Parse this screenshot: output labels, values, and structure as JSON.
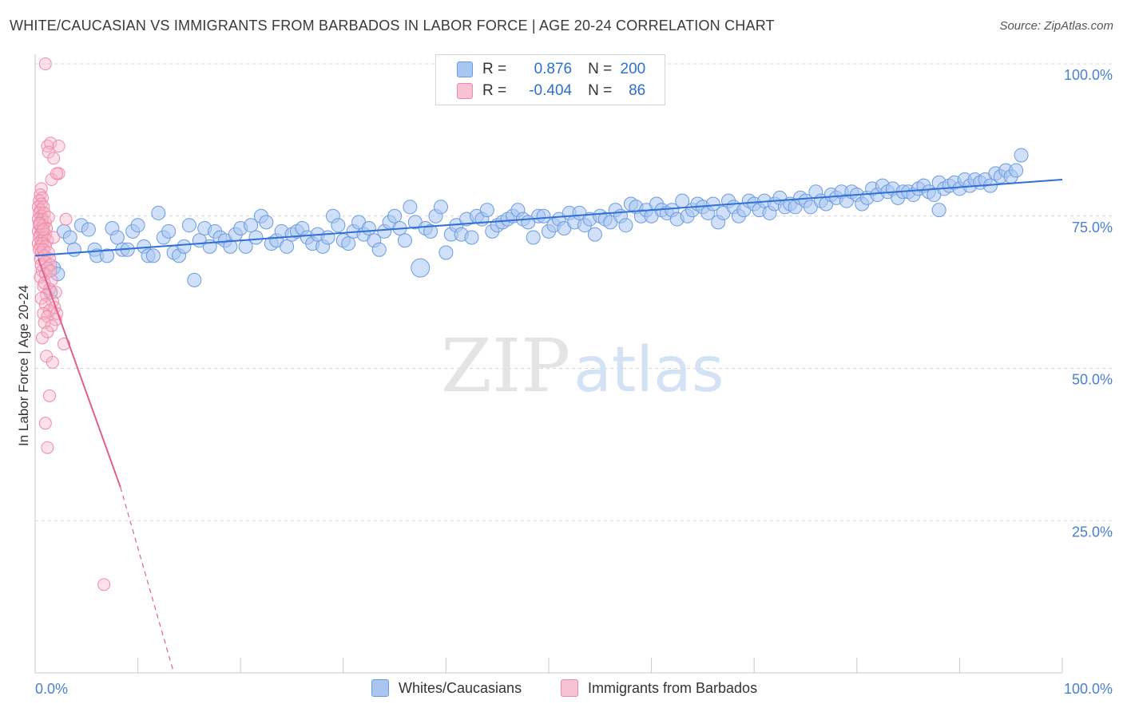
{
  "title": "WHITE/CAUCASIAN VS IMMIGRANTS FROM BARBADOS IN LABOR FORCE | AGE 20-24 CORRELATION CHART",
  "source": "Source: ZipAtlas.com",
  "watermark": {
    "zip": "ZIP",
    "atlas": "atlas"
  },
  "colors": {
    "blue_fill": "#a9c6f2",
    "blue_stroke": "#6b9be0",
    "blue_line": "#2f6fd6",
    "pink_fill": "#f7b3c9",
    "pink_stroke": "#ee8aab",
    "pink_line": "#e0608c",
    "tick_text": "#4a7fd0",
    "grid": "#d6d6d6"
  },
  "legend": {
    "rows": [
      {
        "r_label": "R =",
        "r_value": "0.876",
        "n_label": "N =",
        "n_value": "200"
      },
      {
        "r_label": "R =",
        "r_value": "-0.404",
        "n_label": "N =",
        "n_value": "86"
      }
    ]
  },
  "bottom_legend": {
    "series1": "Whites/Caucasians",
    "series2": "Immigrants from Barbados"
  },
  "chart_data": {
    "type": "scatter",
    "title": "WHITE/CAUCASIAN VS IMMIGRANTS FROM BARBADOS IN LABOR FORCE | AGE 20-24 CORRELATION CHART",
    "xlabel": "",
    "ylabel": "In Labor Force | Age 20-24",
    "xlim": [
      0,
      100
    ],
    "ylim": [
      0,
      100
    ],
    "x_tick_labels": [
      "0.0%",
      "100.0%"
    ],
    "y_tick_labels": [
      "100.0%",
      "75.0%",
      "50.0%",
      "25.0%"
    ],
    "y_ticks": [
      100,
      75,
      50,
      25
    ],
    "grid": true,
    "legend_position": "top-center",
    "series": [
      {
        "name": "Whites/Caucasians",
        "r": 0.876,
        "n": 200,
        "trend": {
          "x": [
            0,
            100
          ],
          "y": [
            68.5,
            81.0
          ]
        },
        "points": [
          [
            1.5,
            62.5
          ],
          [
            1.8,
            66.5
          ],
          [
            2.2,
            65.5
          ],
          [
            2.8,
            72.5
          ],
          [
            3.4,
            71.5
          ],
          [
            3.8,
            69.5
          ],
          [
            4.5,
            73.5
          ],
          [
            5.2,
            72.8
          ],
          [
            5.8,
            69.5
          ],
          [
            6.0,
            68.5
          ],
          [
            7.0,
            68.5
          ],
          [
            7.5,
            73.0
          ],
          [
            8.0,
            71.5
          ],
          [
            8.5,
            69.5
          ],
          [
            9.0,
            69.5
          ],
          [
            9.5,
            72.5
          ],
          [
            10.0,
            73.5
          ],
          [
            10.6,
            70.0
          ],
          [
            11.0,
            68.5
          ],
          [
            11.5,
            68.5
          ],
          [
            12.0,
            75.5
          ],
          [
            12.5,
            71.5
          ],
          [
            13.0,
            72.5
          ],
          [
            13.5,
            69.0
          ],
          [
            14.0,
            68.5
          ],
          [
            14.5,
            70.0
          ],
          [
            15.0,
            73.5
          ],
          [
            15.5,
            64.5
          ],
          [
            16.0,
            71.0
          ],
          [
            16.5,
            73.0
          ],
          [
            17.0,
            70.0
          ],
          [
            17.5,
            72.5
          ],
          [
            18.0,
            71.5
          ],
          [
            18.5,
            71.0
          ],
          [
            19.0,
            70.0
          ],
          [
            19.5,
            72.0
          ],
          [
            20.0,
            73.0
          ],
          [
            20.5,
            70.0
          ],
          [
            21.0,
            73.5
          ],
          [
            21.5,
            71.5
          ],
          [
            22.0,
            75.0
          ],
          [
            22.5,
            74.0
          ],
          [
            23.0,
            70.5
          ],
          [
            23.5,
            71.0
          ],
          [
            24.0,
            72.5
          ],
          [
            24.5,
            70.0
          ],
          [
            25.0,
            72.0
          ],
          [
            25.5,
            72.5
          ],
          [
            26.0,
            73.0
          ],
          [
            26.5,
            71.5
          ],
          [
            27.0,
            70.5
          ],
          [
            27.5,
            72.0
          ],
          [
            28.0,
            70.0
          ],
          [
            28.5,
            71.5
          ],
          [
            29.0,
            75.0
          ],
          [
            29.5,
            73.5
          ],
          [
            30.0,
            71.0
          ],
          [
            30.5,
            70.5
          ],
          [
            31.0,
            72.5
          ],
          [
            31.5,
            74.0
          ],
          [
            32.0,
            72.0
          ],
          [
            32.5,
            73.0
          ],
          [
            33.0,
            71.0
          ],
          [
            33.5,
            69.5
          ],
          [
            34.0,
            72.5
          ],
          [
            34.5,
            74.0
          ],
          [
            35.0,
            75.0
          ],
          [
            35.5,
            73.0
          ],
          [
            36.0,
            71.0
          ],
          [
            36.5,
            76.5
          ],
          [
            37.0,
            74.0
          ],
          [
            37.5,
            66.5
          ],
          [
            38.0,
            73.0
          ],
          [
            38.5,
            72.5
          ],
          [
            39.0,
            75.0
          ],
          [
            39.5,
            76.5
          ],
          [
            40.0,
            69.0
          ],
          [
            40.5,
            72.0
          ],
          [
            41.0,
            73.5
          ],
          [
            41.5,
            72.0
          ],
          [
            42.0,
            74.5
          ],
          [
            42.5,
            71.5
          ],
          [
            43.0,
            75.0
          ],
          [
            43.5,
            74.5
          ],
          [
            44.0,
            76.0
          ],
          [
            44.5,
            72.5
          ],
          [
            45.0,
            73.5
          ],
          [
            45.5,
            74.0
          ],
          [
            46.0,
            74.5
          ],
          [
            46.5,
            75.0
          ],
          [
            47.0,
            76.0
          ],
          [
            47.5,
            74.5
          ],
          [
            48.0,
            74.0
          ],
          [
            48.5,
            71.5
          ],
          [
            49.0,
            75.0
          ],
          [
            49.5,
            75.0
          ],
          [
            50.0,
            72.5
          ],
          [
            50.5,
            73.5
          ],
          [
            51.0,
            74.5
          ],
          [
            51.5,
            73.0
          ],
          [
            52.0,
            75.5
          ],
          [
            52.5,
            74.0
          ],
          [
            53.0,
            75.5
          ],
          [
            53.5,
            73.5
          ],
          [
            54.0,
            74.5
          ],
          [
            54.5,
            72.0
          ],
          [
            55.0,
            75.0
          ],
          [
            55.5,
            74.5
          ],
          [
            56.0,
            74.0
          ],
          [
            56.5,
            76.0
          ],
          [
            57.0,
            75.0
          ],
          [
            57.5,
            73.5
          ],
          [
            58.0,
            77.0
          ],
          [
            58.5,
            76.5
          ],
          [
            59.0,
            75.0
          ],
          [
            59.5,
            76.0
          ],
          [
            60.0,
            75.0
          ],
          [
            60.5,
            77.0
          ],
          [
            61.0,
            76.0
          ],
          [
            61.5,
            75.5
          ],
          [
            62.0,
            76.0
          ],
          [
            62.5,
            74.5
          ],
          [
            63.0,
            77.5
          ],
          [
            63.5,
            75.0
          ],
          [
            64.0,
            76.0
          ],
          [
            64.5,
            77.0
          ],
          [
            65.0,
            76.5
          ],
          [
            65.5,
            75.5
          ],
          [
            66.0,
            77.0
          ],
          [
            66.5,
            74.0
          ],
          [
            67.0,
            75.5
          ],
          [
            67.5,
            77.5
          ],
          [
            68.0,
            76.5
          ],
          [
            68.5,
            75.0
          ],
          [
            69.0,
            76.0
          ],
          [
            69.5,
            77.5
          ],
          [
            70.0,
            77.0
          ],
          [
            70.5,
            76.0
          ],
          [
            71.0,
            77.5
          ],
          [
            71.5,
            75.5
          ],
          [
            72.0,
            77.0
          ],
          [
            72.5,
            78.0
          ],
          [
            73.0,
            76.5
          ],
          [
            73.5,
            77.0
          ],
          [
            74.0,
            76.5
          ],
          [
            74.5,
            78.0
          ],
          [
            75.0,
            77.5
          ],
          [
            75.5,
            76.5
          ],
          [
            76.0,
            79.0
          ],
          [
            76.5,
            77.5
          ],
          [
            77.0,
            77.0
          ],
          [
            77.5,
            78.5
          ],
          [
            78.0,
            78.0
          ],
          [
            78.5,
            79.0
          ],
          [
            79.0,
            77.5
          ],
          [
            79.5,
            79.0
          ],
          [
            80.0,
            78.5
          ],
          [
            80.5,
            77.0
          ],
          [
            81.0,
            78.0
          ],
          [
            81.5,
            79.5
          ],
          [
            82.0,
            78.5
          ],
          [
            82.5,
            80.0
          ],
          [
            83.0,
            79.0
          ],
          [
            83.5,
            79.5
          ],
          [
            84.0,
            78.0
          ],
          [
            84.5,
            79.0
          ],
          [
            85.0,
            79.0
          ],
          [
            85.5,
            78.5
          ],
          [
            86.0,
            79.5
          ],
          [
            86.5,
            80.0
          ],
          [
            87.0,
            79.0
          ],
          [
            87.5,
            78.5
          ],
          [
            88.0,
            80.5
          ],
          [
            88.5,
            79.5
          ],
          [
            89.0,
            80.0
          ],
          [
            89.5,
            80.5
          ],
          [
            90.0,
            79.5
          ],
          [
            90.5,
            81.0
          ],
          [
            91.0,
            80.0
          ],
          [
            91.5,
            81.0
          ],
          [
            92.0,
            80.5
          ],
          [
            92.5,
            81.0
          ],
          [
            93.0,
            80.0
          ],
          [
            93.5,
            82.0
          ],
          [
            94.0,
            81.5
          ],
          [
            94.5,
            82.5
          ],
          [
            95.0,
            81.5
          ],
          [
            95.5,
            82.5
          ],
          [
            96.0,
            85.0
          ],
          [
            88.0,
            76.0
          ]
        ]
      },
      {
        "name": "Immigrants from Barbados",
        "r": -0.404,
        "n": 86,
        "trend": {
          "x": [
            0.3,
            8.3,
            13.5
          ],
          "y": [
            68.0,
            30.5,
            0
          ]
        },
        "points": [
          [
            1.0,
            100.0
          ],
          [
            1.2,
            86.5
          ],
          [
            1.5,
            87.0
          ],
          [
            1.3,
            85.5
          ],
          [
            2.3,
            86.5
          ],
          [
            1.8,
            84.5
          ],
          [
            1.6,
            81.0
          ],
          [
            2.3,
            82.0
          ],
          [
            2.1,
            82.0
          ],
          [
            0.6,
            79.5
          ],
          [
            0.5,
            78.5
          ],
          [
            0.7,
            78.0
          ],
          [
            0.4,
            77.5
          ],
          [
            0.6,
            77.0
          ],
          [
            0.3,
            76.5
          ],
          [
            0.5,
            76.0
          ],
          [
            0.8,
            76.5
          ],
          [
            0.4,
            75.5
          ],
          [
            0.6,
            75.0
          ],
          [
            0.9,
            75.5
          ],
          [
            0.3,
            74.5
          ],
          [
            0.5,
            74.0
          ],
          [
            0.7,
            74.5
          ],
          [
            1.0,
            74.0
          ],
          [
            3.0,
            74.5
          ],
          [
            0.4,
            73.5
          ],
          [
            0.6,
            73.0
          ],
          [
            0.8,
            73.5
          ],
          [
            1.1,
            73.0
          ],
          [
            0.3,
            72.5
          ],
          [
            0.5,
            72.0
          ],
          [
            0.7,
            72.5
          ],
          [
            1.0,
            72.0
          ],
          [
            0.4,
            71.5
          ],
          [
            0.6,
            71.0
          ],
          [
            0.9,
            71.5
          ],
          [
            1.2,
            71.0
          ],
          [
            1.8,
            71.5
          ],
          [
            0.3,
            70.5
          ],
          [
            0.5,
            70.0
          ],
          [
            0.7,
            70.5
          ],
          [
            1.0,
            70.0
          ],
          [
            0.4,
            69.5
          ],
          [
            0.6,
            69.0
          ],
          [
            0.8,
            69.5
          ],
          [
            1.3,
            69.0
          ],
          [
            0.5,
            68.0
          ],
          [
            0.9,
            68.5
          ],
          [
            1.4,
            68.0
          ],
          [
            0.6,
            67.0
          ],
          [
            1.0,
            67.5
          ],
          [
            1.5,
            67.0
          ],
          [
            0.7,
            66.0
          ],
          [
            1.2,
            66.5
          ],
          [
            0.5,
            65.0
          ],
          [
            1.0,
            65.5
          ],
          [
            1.6,
            64.5
          ],
          [
            0.8,
            63.5
          ],
          [
            1.4,
            63.0
          ],
          [
            2.0,
            62.5
          ],
          [
            1.1,
            62.0
          ],
          [
            0.6,
            61.5
          ],
          [
            1.7,
            61.0
          ],
          [
            1.0,
            60.5
          ],
          [
            1.9,
            60.0
          ],
          [
            1.4,
            59.5
          ],
          [
            0.8,
            59.0
          ],
          [
            1.2,
            58.5
          ],
          [
            2.0,
            58.0
          ],
          [
            0.9,
            57.5
          ],
          [
            1.6,
            57.0
          ],
          [
            0.7,
            55.0
          ],
          [
            2.8,
            54.0
          ],
          [
            1.1,
            52.0
          ],
          [
            1.7,
            51.0
          ],
          [
            1.4,
            45.5
          ],
          [
            1.0,
            41.0
          ],
          [
            1.2,
            37.0
          ],
          [
            6.7,
            14.5
          ],
          [
            1.3,
            74.8
          ],
          [
            0.4,
            73.8
          ],
          [
            0.8,
            72.8
          ],
          [
            1.5,
            66.0
          ],
          [
            0.9,
            64.0
          ],
          [
            2.1,
            59.0
          ],
          [
            1.2,
            56.0
          ]
        ]
      }
    ]
  }
}
